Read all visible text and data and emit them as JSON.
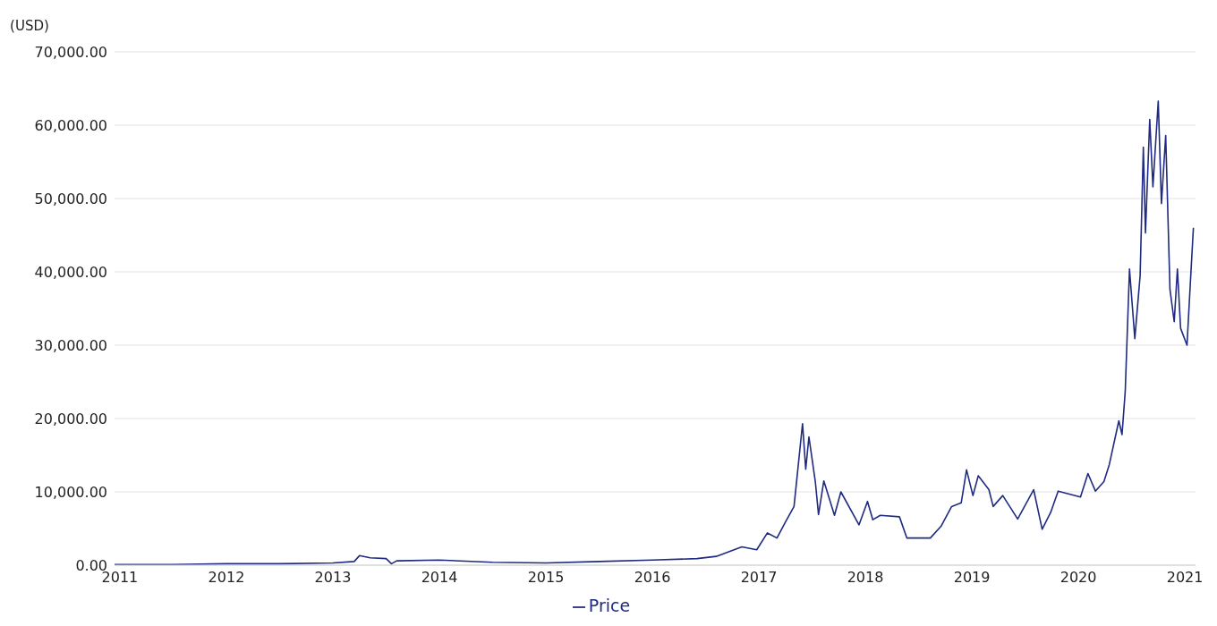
{
  "chart_data": {
    "type": "line",
    "ylabel": "(USD)",
    "xlim": [
      2010.95,
      2021.1
    ],
    "xticks": [
      2011,
      2012,
      2013,
      2014,
      2015,
      2016,
      2017,
      2018,
      2019,
      2020,
      2021
    ],
    "ylim": [
      0,
      70000
    ],
    "yticks": [
      {
        "value": 0,
        "label": "0.00"
      },
      {
        "value": 10000,
        "label": "10,000.00"
      },
      {
        "value": 20000,
        "label": "20,000.00"
      },
      {
        "value": 30000,
        "label": "30,000.00"
      },
      {
        "value": 40000,
        "label": "40,000.00"
      },
      {
        "value": 50000,
        "label": "50,000.00"
      },
      {
        "value": 60000,
        "label": "60,000.00"
      },
      {
        "value": 70000,
        "label": "70,000.00"
      }
    ],
    "grid": "y",
    "legend": "bottom",
    "marker": "none",
    "line_style": "solid",
    "series": [
      {
        "name": "Price",
        "color": "#1f2a80",
        "x": [
          2010.95,
          2011.5,
          2012,
          2012.5,
          2013,
          2013.2,
          2013.25,
          2013.35,
          2013.5,
          2013.55,
          2013.6,
          2014,
          2014.5,
          2015,
          2015.5,
          2016,
          2016.42,
          2016.6,
          2016.84,
          2016.98,
          2017.08,
          2017.17,
          2017.25,
          2017.33,
          2017.41,
          2017.44,
          2017.47,
          2017.53,
          2017.56,
          2017.61,
          2017.71,
          2017.77,
          2017.94,
          2018.02,
          2018.07,
          2018.14,
          2018.32,
          2018.39,
          2018.61,
          2018.71,
          2018.81,
          2018.9,
          2018.95,
          2019.01,
          2019.06,
          2019.16,
          2019.2,
          2019.29,
          2019.43,
          2019.58,
          2019.66,
          2019.74,
          2019.81,
          2020.02,
          2020.09,
          2020.16,
          2020.24,
          2020.29,
          2020.38,
          2020.41,
          2020.44,
          2020.48,
          2020.53,
          2020.58,
          2020.61,
          2020.63,
          2020.67,
          2020.7,
          2020.73,
          2020.75,
          2020.78,
          2020.82,
          2020.86,
          2020.9,
          2020.93,
          2020.96,
          2021.02,
          2021.05,
          2021.08
        ],
        "values": [
          100,
          100,
          200,
          200,
          300,
          500,
          1300,
          1000,
          900,
          200,
          600,
          700,
          400,
          300,
          500,
          700,
          900,
          1200,
          2500,
          2100,
          4400,
          3700,
          5900,
          8000,
          19300,
          13100,
          17500,
          11400,
          6900,
          11500,
          6800,
          10000,
          5500,
          8700,
          6200,
          6800,
          6600,
          3700,
          3700,
          5300,
          8000,
          8500,
          13000,
          9500,
          12200,
          10300,
          8000,
          9500,
          6300,
          10300,
          4900,
          7200,
          10100,
          9300,
          12500,
          10100,
          11400,
          13700,
          19700,
          17800,
          23700,
          40400,
          30900,
          39500,
          57000,
          45300,
          60800,
          51600,
          58600,
          63300,
          49300,
          58600,
          37600,
          33200,
          40400,
          32300,
          30000,
          38100,
          46000
        ]
      }
    ]
  }
}
